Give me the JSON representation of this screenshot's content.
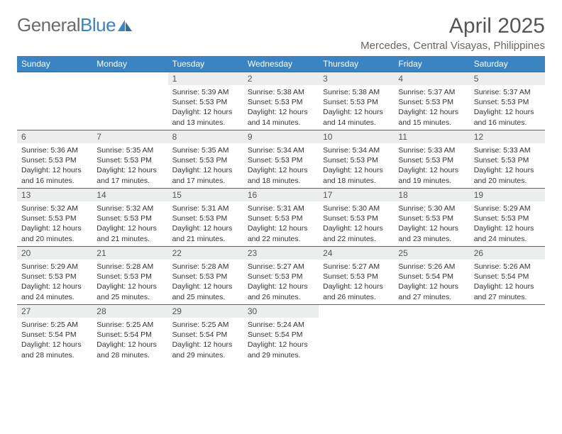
{
  "logo": {
    "part1": "General",
    "part2": "Blue"
  },
  "title": "April 2025",
  "location": "Mercedes, Central Visayas, Philippines",
  "colors": {
    "header_bg": "#3a84c4",
    "header_text": "#ffffff",
    "daynum_bg": "#eceeee",
    "row_border": "#3a6a8f",
    "logo_gray": "#6b6b6b",
    "logo_blue": "#3a84c4"
  },
  "dayHeaders": [
    "Sunday",
    "Monday",
    "Tuesday",
    "Wednesday",
    "Thursday",
    "Friday",
    "Saturday"
  ],
  "weeks": [
    [
      {
        "day": "",
        "sunrise": "",
        "sunset": "",
        "daylight": ""
      },
      {
        "day": "",
        "sunrise": "",
        "sunset": "",
        "daylight": ""
      },
      {
        "day": "1",
        "sunrise": "Sunrise: 5:39 AM",
        "sunset": "Sunset: 5:53 PM",
        "daylight": "Daylight: 12 hours and 13 minutes."
      },
      {
        "day": "2",
        "sunrise": "Sunrise: 5:38 AM",
        "sunset": "Sunset: 5:53 PM",
        "daylight": "Daylight: 12 hours and 14 minutes."
      },
      {
        "day": "3",
        "sunrise": "Sunrise: 5:38 AM",
        "sunset": "Sunset: 5:53 PM",
        "daylight": "Daylight: 12 hours and 14 minutes."
      },
      {
        "day": "4",
        "sunrise": "Sunrise: 5:37 AM",
        "sunset": "Sunset: 5:53 PM",
        "daylight": "Daylight: 12 hours and 15 minutes."
      },
      {
        "day": "5",
        "sunrise": "Sunrise: 5:37 AM",
        "sunset": "Sunset: 5:53 PM",
        "daylight": "Daylight: 12 hours and 16 minutes."
      }
    ],
    [
      {
        "day": "6",
        "sunrise": "Sunrise: 5:36 AM",
        "sunset": "Sunset: 5:53 PM",
        "daylight": "Daylight: 12 hours and 16 minutes."
      },
      {
        "day": "7",
        "sunrise": "Sunrise: 5:35 AM",
        "sunset": "Sunset: 5:53 PM",
        "daylight": "Daylight: 12 hours and 17 minutes."
      },
      {
        "day": "8",
        "sunrise": "Sunrise: 5:35 AM",
        "sunset": "Sunset: 5:53 PM",
        "daylight": "Daylight: 12 hours and 17 minutes."
      },
      {
        "day": "9",
        "sunrise": "Sunrise: 5:34 AM",
        "sunset": "Sunset: 5:53 PM",
        "daylight": "Daylight: 12 hours and 18 minutes."
      },
      {
        "day": "10",
        "sunrise": "Sunrise: 5:34 AM",
        "sunset": "Sunset: 5:53 PM",
        "daylight": "Daylight: 12 hours and 18 minutes."
      },
      {
        "day": "11",
        "sunrise": "Sunrise: 5:33 AM",
        "sunset": "Sunset: 5:53 PM",
        "daylight": "Daylight: 12 hours and 19 minutes."
      },
      {
        "day": "12",
        "sunrise": "Sunrise: 5:33 AM",
        "sunset": "Sunset: 5:53 PM",
        "daylight": "Daylight: 12 hours and 20 minutes."
      }
    ],
    [
      {
        "day": "13",
        "sunrise": "Sunrise: 5:32 AM",
        "sunset": "Sunset: 5:53 PM",
        "daylight": "Daylight: 12 hours and 20 minutes."
      },
      {
        "day": "14",
        "sunrise": "Sunrise: 5:32 AM",
        "sunset": "Sunset: 5:53 PM",
        "daylight": "Daylight: 12 hours and 21 minutes."
      },
      {
        "day": "15",
        "sunrise": "Sunrise: 5:31 AM",
        "sunset": "Sunset: 5:53 PM",
        "daylight": "Daylight: 12 hours and 21 minutes."
      },
      {
        "day": "16",
        "sunrise": "Sunrise: 5:31 AM",
        "sunset": "Sunset: 5:53 PM",
        "daylight": "Daylight: 12 hours and 22 minutes."
      },
      {
        "day": "17",
        "sunrise": "Sunrise: 5:30 AM",
        "sunset": "Sunset: 5:53 PM",
        "daylight": "Daylight: 12 hours and 22 minutes."
      },
      {
        "day": "18",
        "sunrise": "Sunrise: 5:30 AM",
        "sunset": "Sunset: 5:53 PM",
        "daylight": "Daylight: 12 hours and 23 minutes."
      },
      {
        "day": "19",
        "sunrise": "Sunrise: 5:29 AM",
        "sunset": "Sunset: 5:53 PM",
        "daylight": "Daylight: 12 hours and 24 minutes."
      }
    ],
    [
      {
        "day": "20",
        "sunrise": "Sunrise: 5:29 AM",
        "sunset": "Sunset: 5:53 PM",
        "daylight": "Daylight: 12 hours and 24 minutes."
      },
      {
        "day": "21",
        "sunrise": "Sunrise: 5:28 AM",
        "sunset": "Sunset: 5:53 PM",
        "daylight": "Daylight: 12 hours and 25 minutes."
      },
      {
        "day": "22",
        "sunrise": "Sunrise: 5:28 AM",
        "sunset": "Sunset: 5:53 PM",
        "daylight": "Daylight: 12 hours and 25 minutes."
      },
      {
        "day": "23",
        "sunrise": "Sunrise: 5:27 AM",
        "sunset": "Sunset: 5:53 PM",
        "daylight": "Daylight: 12 hours and 26 minutes."
      },
      {
        "day": "24",
        "sunrise": "Sunrise: 5:27 AM",
        "sunset": "Sunset: 5:53 PM",
        "daylight": "Daylight: 12 hours and 26 minutes."
      },
      {
        "day": "25",
        "sunrise": "Sunrise: 5:26 AM",
        "sunset": "Sunset: 5:54 PM",
        "daylight": "Daylight: 12 hours and 27 minutes."
      },
      {
        "day": "26",
        "sunrise": "Sunrise: 5:26 AM",
        "sunset": "Sunset: 5:54 PM",
        "daylight": "Daylight: 12 hours and 27 minutes."
      }
    ],
    [
      {
        "day": "27",
        "sunrise": "Sunrise: 5:25 AM",
        "sunset": "Sunset: 5:54 PM",
        "daylight": "Daylight: 12 hours and 28 minutes."
      },
      {
        "day": "28",
        "sunrise": "Sunrise: 5:25 AM",
        "sunset": "Sunset: 5:54 PM",
        "daylight": "Daylight: 12 hours and 28 minutes."
      },
      {
        "day": "29",
        "sunrise": "Sunrise: 5:25 AM",
        "sunset": "Sunset: 5:54 PM",
        "daylight": "Daylight: 12 hours and 29 minutes."
      },
      {
        "day": "30",
        "sunrise": "Sunrise: 5:24 AM",
        "sunset": "Sunset: 5:54 PM",
        "daylight": "Daylight: 12 hours and 29 minutes."
      },
      {
        "day": "",
        "sunrise": "",
        "sunset": "",
        "daylight": ""
      },
      {
        "day": "",
        "sunrise": "",
        "sunset": "",
        "daylight": ""
      },
      {
        "day": "",
        "sunrise": "",
        "sunset": "",
        "daylight": ""
      }
    ]
  ]
}
